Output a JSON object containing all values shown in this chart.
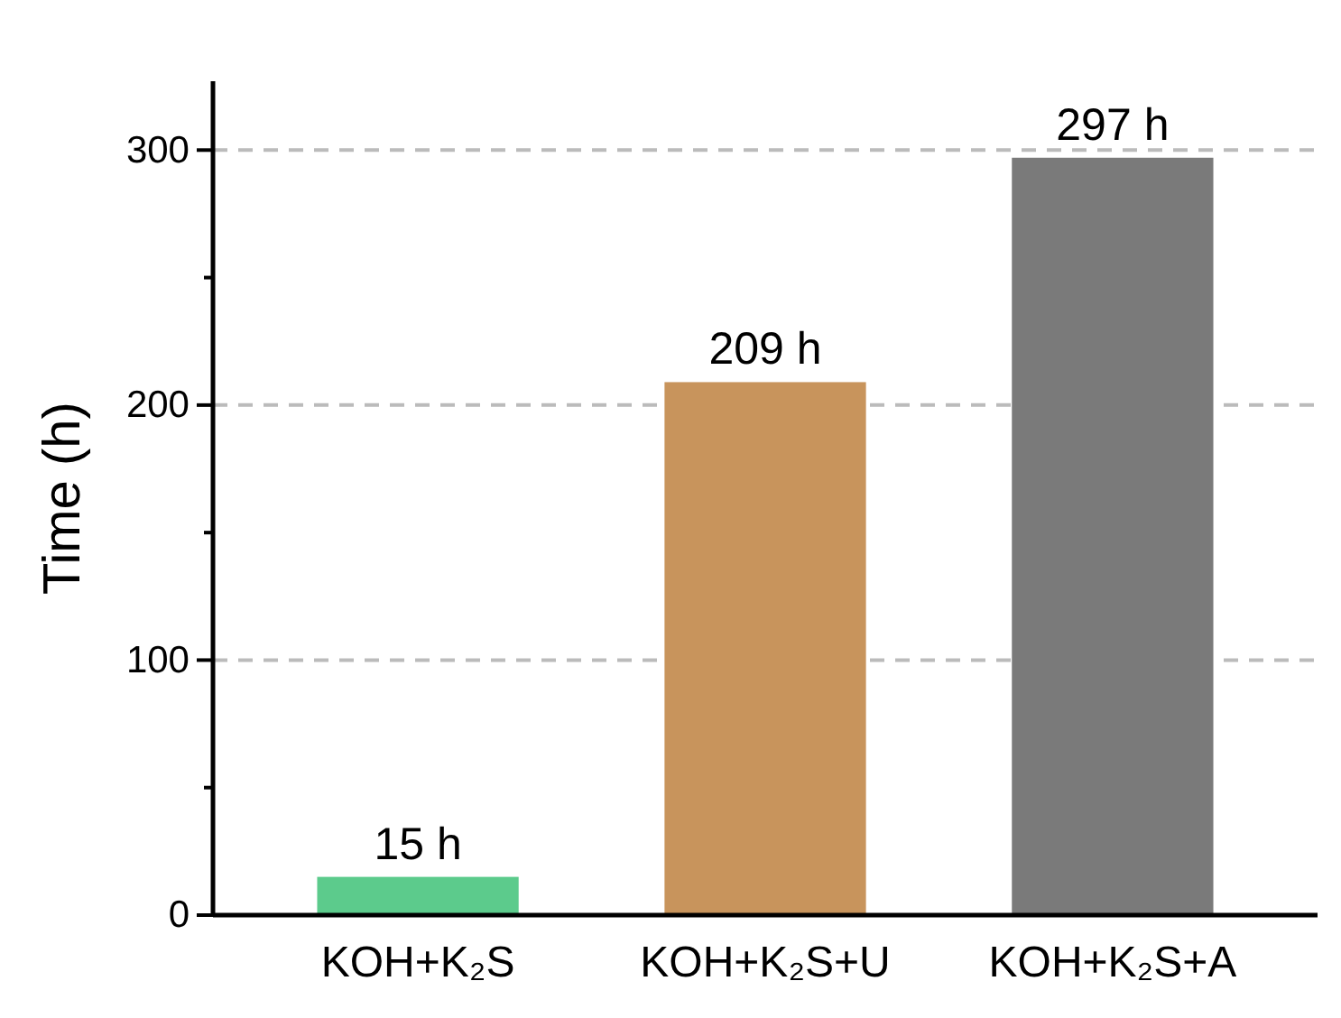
{
  "chart_data": {
    "type": "bar",
    "ylabel": "Time (h)",
    "categories": [
      "KOH+K₂S",
      "KOH+K₂S+U",
      "KOH+K₂S+A"
    ],
    "values": [
      15,
      209,
      297
    ],
    "colors": [
      "#5ccb8c",
      "#c8945c",
      "#7a7a7a"
    ],
    "value_labels": [
      "15 h",
      "209 h",
      "297 h"
    ],
    "ylim": [
      0,
      327
    ],
    "yticks": [
      0,
      {
        "value": 50,
        "label": null
      },
      100,
      {
        "value": 150,
        "label": null
      },
      200,
      {
        "value": 250,
        "label": null
      },
      300
    ],
    "grid": "y"
  }
}
